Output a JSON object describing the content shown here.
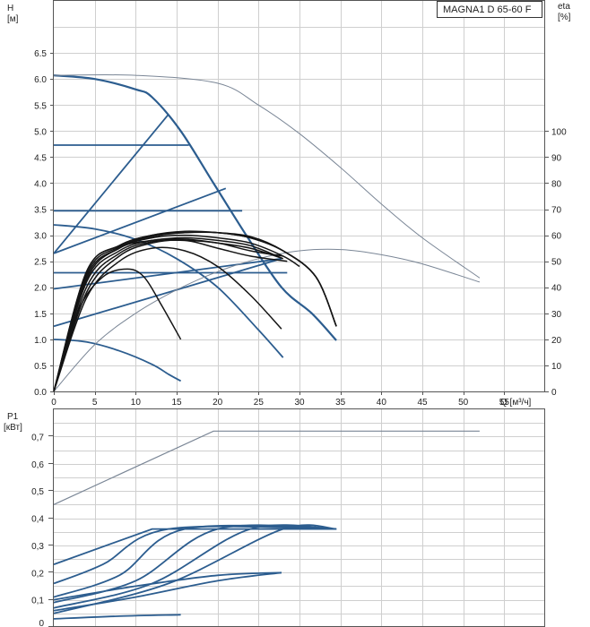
{
  "colors": {
    "blue": "#2c5d8f",
    "black": "#141414",
    "grey_line": "#7a8696"
  },
  "chart_data": [
    {
      "type": "line",
      "model_label": "MAGNA1 D 65-60 F",
      "ylabel": "H",
      "yunit": "[м]",
      "ylabel_right": "eta",
      "yunit_right": "[%]",
      "xlabel": "Q [м³/ч]",
      "xlim": [
        0,
        60
      ],
      "ylim": [
        0,
        7.5
      ],
      "ylim_right": [
        0,
        150
      ],
      "x_ticks": [
        "0",
        "5",
        "10",
        "15",
        "20",
        "25",
        "30",
        "35",
        "40",
        "45",
        "50",
        "55"
      ],
      "y_ticks": [
        "0.0",
        "0.5",
        "1.0",
        "1.5",
        "2.0",
        "2.5",
        "3.0",
        "3.5",
        "4.0",
        "4.5",
        "5.0",
        "5.5",
        "6.0",
        "6.5"
      ],
      "y_right_ticks": [
        "0",
        "10",
        "20",
        "30",
        "40",
        "50",
        "60",
        "70",
        "80",
        "90",
        "100"
      ],
      "head_curves": [
        {
          "x": [
            0,
            4,
            8,
            12,
            14,
            15.5
          ],
          "y": [
            1.0,
            0.95,
            0.78,
            0.52,
            0.33,
            0.2
          ]
        },
        {
          "x": [
            0,
            5,
            10,
            15,
            20,
            25,
            28
          ],
          "y": [
            3.2,
            3.12,
            2.92,
            2.55,
            2.0,
            1.18,
            0.65
          ]
        },
        {
          "x": [
            0,
            5,
            10,
            12,
            15.5,
            19.5,
            23.5,
            27.8,
            31.5,
            34.5
          ],
          "y": [
            6.07,
            6.0,
            5.8,
            5.65,
            5.0,
            4.0,
            3.0,
            2.0,
            1.5,
            0.98
          ]
        },
        {
          "x": [
            0,
            10,
            20,
            25,
            30,
            35,
            40,
            45,
            52
          ],
          "y": [
            6.07,
            6.07,
            5.92,
            5.5,
            4.95,
            4.3,
            3.6,
            2.95,
            2.18
          ]
        }
      ],
      "control_lines": [
        {
          "x": [
            0,
            27.8
          ],
          "y": [
            1.25,
            2.55
          ]
        },
        {
          "x": [
            0,
            27.8
          ],
          "y": [
            1.97,
            2.55
          ]
        },
        {
          "x": [
            0,
            21
          ],
          "y": [
            2.65,
            3.9
          ]
        },
        {
          "x": [
            0,
            14
          ],
          "y": [
            2.65,
            5.32
          ]
        },
        {
          "x": [
            0,
            28.5
          ],
          "y": [
            2.28,
            2.28
          ]
        },
        {
          "x": [
            0,
            23
          ],
          "y": [
            3.47,
            3.47
          ]
        },
        {
          "x": [
            0,
            16.5
          ],
          "y": [
            4.73,
            4.73
          ]
        }
      ],
      "efficiency_curves": [
        {
          "x": [
            0,
            3,
            6,
            9,
            11,
            13,
            15.5
          ],
          "y": [
            0,
            31,
            44,
            47,
            44,
            34,
            20
          ]
        },
        {
          "x": [
            0,
            4,
            8,
            12,
            16,
            20,
            24,
            27.8
          ],
          "y": [
            0,
            36,
            50,
            55,
            54,
            48,
            37,
            24
          ]
        },
        {
          "x": [
            0,
            4,
            8,
            12,
            16,
            20,
            24,
            28.5
          ],
          "y": [
            0,
            38,
            52,
            57,
            58,
            55,
            52,
            50
          ]
        },
        {
          "x": [
            0,
            4,
            8,
            12,
            16,
            20,
            24,
            28
          ],
          "y": [
            0,
            40,
            53,
            57.5,
            58,
            57,
            54,
            52
          ]
        },
        {
          "x": [
            0,
            4,
            8,
            12,
            16,
            20,
            24,
            28
          ],
          "y": [
            0,
            42,
            54,
            58,
            58.5,
            57,
            55,
            51
          ]
        },
        {
          "x": [
            0,
            4,
            8,
            12,
            16,
            20,
            24,
            28
          ],
          "y": [
            0,
            43,
            55,
            58,
            59,
            58,
            56,
            51
          ]
        },
        {
          "x": [
            0,
            4,
            8,
            12,
            16,
            20,
            24,
            28,
            30
          ],
          "y": [
            0,
            44,
            55,
            59,
            60,
            59,
            57,
            52,
            48
          ]
        },
        {
          "x": [
            0,
            4,
            8,
            12,
            16,
            20,
            24,
            28,
            32,
            34.5
          ],
          "y": [
            0,
            45,
            55.5,
            59.5,
            61,
            61,
            59,
            54,
            44,
            25
          ]
        },
        {
          "x": [
            0,
            4,
            8,
            12,
            16,
            20,
            24,
            28,
            32,
            34.5
          ],
          "y": [
            0,
            46,
            56,
            60,
            61.5,
            61,
            59.5,
            54,
            44,
            25
          ]
        },
        {
          "x": [
            0,
            4,
            8,
            12,
            16,
            20,
            24,
            28,
            32,
            34.5
          ],
          "y": [
            0,
            46,
            56,
            60,
            61,
            61,
            59,
            54,
            44,
            25
          ]
        }
      ],
      "efficiency_max_curve": {
        "x": [
          0,
          5,
          10,
          15,
          20,
          25,
          30,
          35,
          40,
          45,
          52
        ],
        "y": [
          0,
          18,
          30,
          39,
          46,
          51,
          54,
          54.5,
          52.5,
          49,
          42
        ]
      }
    },
    {
      "type": "line",
      "ylabel": "P1",
      "yunit": "[кВт]",
      "xlim": [
        0,
        60
      ],
      "ylim": [
        0,
        0.8
      ],
      "y_ticks": [
        "0",
        "0,1",
        "0,2",
        "0,3",
        "0,4",
        "0,5",
        "0,6",
        "0,7"
      ],
      "power_curves": [
        {
          "x": [
            0,
            19.5,
            52
          ],
          "y": [
            0.45,
            0.72,
            0.72
          ]
        },
        {
          "x": [
            0,
            12,
            34.5
          ],
          "y": [
            0.23,
            0.36,
            0.36
          ]
        },
        {
          "x": [
            0,
            6,
            14,
            34.5
          ],
          "y": [
            0.16,
            0.23,
            0.36,
            0.36
          ]
        },
        {
          "x": [
            0,
            8,
            16,
            34.5
          ],
          "y": [
            0.11,
            0.19,
            0.36,
            0.36
          ]
        },
        {
          "x": [
            0,
            10,
            20,
            34.5
          ],
          "y": [
            0.09,
            0.17,
            0.36,
            0.36
          ]
        },
        {
          "x": [
            0,
            12,
            24,
            34.5
          ],
          "y": [
            0.07,
            0.16,
            0.36,
            0.36
          ]
        },
        {
          "x": [
            0,
            14,
            28,
            34.5
          ],
          "y": [
            0.05,
            0.16,
            0.36,
            0.36
          ]
        },
        {
          "x": [
            0,
            10,
            20,
            27.8
          ],
          "y": [
            0.1,
            0.15,
            0.19,
            0.2
          ]
        },
        {
          "x": [
            0,
            10,
            20,
            27.8
          ],
          "y": [
            0.06,
            0.11,
            0.17,
            0.2
          ]
        },
        {
          "x": [
            0,
            8,
            15.5
          ],
          "y": [
            0.03,
            0.04,
            0.045
          ]
        }
      ]
    }
  ]
}
